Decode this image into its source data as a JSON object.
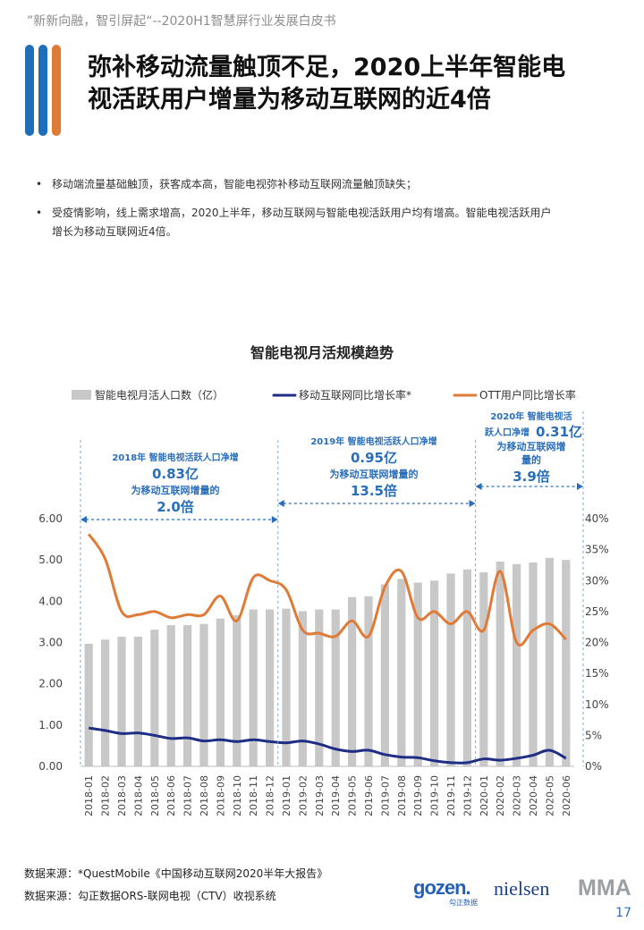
{
  "header": {
    "tagline": "”新新向融，智引屏起“--2020H1智慧屏行业发展白皮书"
  },
  "title": {
    "line1": "弥补移动流量触顶不足，2020上半年智能电",
    "line2": "视活跃用户增量为移动互联网的近4倍"
  },
  "bullets": [
    {
      "text": "移动端流量基础触顶，获客成本高，智能电视弥补移动互联网流量触顶缺失；"
    },
    {
      "line1": "受疫情影响，线上需求增高，2020上半年，移动互联网与智能电视活跃用户均有增高。智能电视活跃用户",
      "line2": "增长为移动互联网近4倍。"
    }
  ],
  "colors": {
    "bar": "#c8c8c8",
    "mobile": "#1f2d86",
    "ott": "#e07a37",
    "annotation": "#2a6ebb",
    "bars_title": [
      "#2a6ebb",
      "#2a6ebb",
      "#e07a37"
    ]
  },
  "chart_data": {
    "type": "bar+line",
    "title": "智能电视月活规模趋势",
    "legend": {
      "bar": "智能电视月活人口数（亿）",
      "mobile": "移动互联网同比增长率*",
      "ott": "OTT用户同比增长率"
    },
    "categories": [
      "2018-01",
      "2018-02",
      "2018-03",
      "2018-04",
      "2018-05",
      "2018-06",
      "2018-07",
      "2018-08",
      "2018-09",
      "2018-10",
      "2018-11",
      "2018-12",
      "2019-01",
      "2019-02",
      "2019-03",
      "2019-04",
      "2019-05",
      "2019-06",
      "2019-07",
      "2019-08",
      "2019-09",
      "2019-10",
      "2019-11",
      "2019-12",
      "2020-01",
      "2020-02",
      "2020-03",
      "2020-04",
      "2020-05",
      "2020-06"
    ],
    "left_axis": {
      "range": [
        0,
        6
      ],
      "ticks": [
        "0.00",
        "1.00",
        "2.00",
        "3.00",
        "4.00",
        "5.00",
        "6.00"
      ]
    },
    "right_axis": {
      "range": [
        0,
        40
      ],
      "ticks": [
        "0%",
        "5%",
        "10%",
        "15%",
        "20%",
        "25%",
        "30%",
        "35%",
        "40%"
      ]
    },
    "series": [
      {
        "name": "智能电视月活人口数（亿）",
        "type": "bar",
        "axis": "left",
        "values": [
          2.97,
          3.07,
          3.14,
          3.14,
          3.31,
          3.42,
          3.42,
          3.45,
          3.58,
          3.66,
          3.8,
          3.8,
          3.82,
          3.76,
          3.8,
          3.8,
          4.1,
          4.12,
          4.41,
          4.54,
          4.45,
          4.5,
          4.67,
          4.77,
          4.7,
          4.96,
          4.9,
          4.94,
          5.05,
          5.0
        ]
      },
      {
        "name": "移动互联网同比增长率*",
        "type": "line",
        "axis": "right",
        "values": [
          6.2,
          5.8,
          5.3,
          5.4,
          5.0,
          4.5,
          4.6,
          4.1,
          4.3,
          4.0,
          4.3,
          4.0,
          3.8,
          4.1,
          3.6,
          2.8,
          2.4,
          2.6,
          1.9,
          1.5,
          1.4,
          0.9,
          0.6,
          0.6,
          1.2,
          1.0,
          1.3,
          1.8,
          2.6,
          1.3
        ]
      },
      {
        "name": "OTT用户同比增长率",
        "type": "line",
        "axis": "right",
        "values": [
          37.5,
          33.5,
          25.0,
          24.5,
          25.0,
          24.0,
          24.5,
          24.5,
          27.5,
          23.5,
          30.5,
          30.0,
          28.5,
          22.0,
          21.5,
          21.0,
          23.5,
          21.0,
          29.0,
          31.5,
          24.0,
          25.0,
          23.0,
          25.0,
          22.0,
          31.5,
          20.0,
          22.0,
          23.0,
          20.5
        ]
      }
    ],
    "annotations": [
      {
        "line1": "2018年 智能电视活跃人口净增",
        "value": "0.83亿",
        "line3": "为移动互联网增量的",
        "ratio": "2.0倍"
      },
      {
        "line1": "2019年 智能电视活跃人口净增",
        "value": "0.95亿",
        "line3": "为移动互联网增量的",
        "ratio": "13.5倍"
      },
      {
        "line1": "2020年 智能电视活",
        "line2a": "跃人口净增",
        "value": "0.31亿",
        "line3": "为移动互联网增",
        "line4": "量的",
        "ratio": "3.9倍"
      }
    ],
    "grid": false,
    "legend_placement": "top"
  },
  "sources": [
    {
      "text": "数据来源：*QuestMobile《中国移动互联网2020半年大报告》"
    },
    {
      "text": "数据来源：勾正数据ORS-联网电视（CTV）收视系统"
    }
  ],
  "logos": {
    "gozen": "gozen.",
    "gozen_sub": "勾正数据",
    "nielsen": "nielsen",
    "mma": "MMA"
  },
  "page_number": "17"
}
